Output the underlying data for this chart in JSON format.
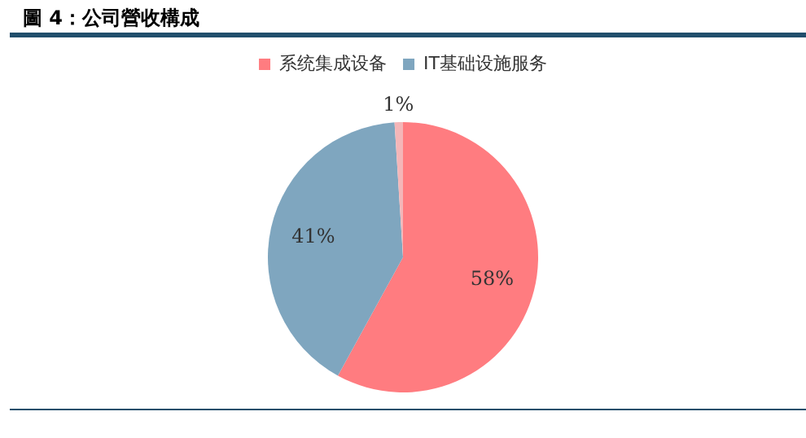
{
  "chart_data": {
    "type": "pie",
    "title": "圖 4：公司營收構成",
    "categories": [
      "系统集成设备",
      "IT基础设施服务",
      null
    ],
    "values": [
      58,
      41,
      1
    ],
    "colors": [
      "#ff7c80",
      "#7fa6bf",
      "#f4b6b8"
    ],
    "value_labels": [
      "58%",
      "41%",
      "1%"
    ],
    "legend": "top"
  }
}
